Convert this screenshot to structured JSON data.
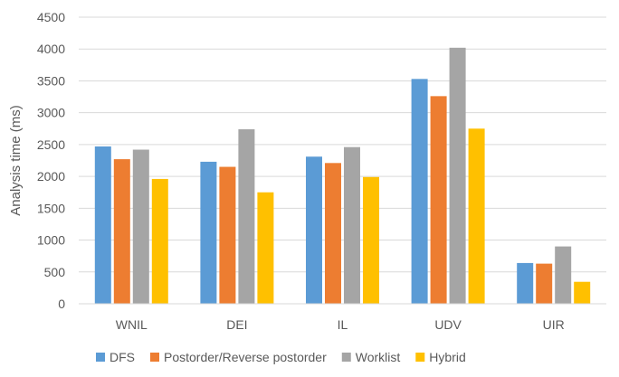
{
  "chart_data": {
    "type": "bar",
    "title": "",
    "xlabel": "",
    "ylabel": "Analysis time (ms)",
    "ylim": [
      0,
      4500
    ],
    "yticks": [
      0,
      500,
      1000,
      1500,
      2000,
      2500,
      3000,
      3500,
      4000,
      4500
    ],
    "grid": true,
    "legend_position": "bottom",
    "categories": [
      "WNIL",
      "DEI",
      "IL",
      "UDV",
      "UIR"
    ],
    "series": [
      {
        "name": "DFS",
        "color": "#5B9BD5",
        "values": [
          2470,
          2230,
          2310,
          3530,
          640
        ]
      },
      {
        "name": "Postorder/Reverse postorder",
        "color": "#ED7D31",
        "values": [
          2270,
          2150,
          2210,
          3260,
          630
        ]
      },
      {
        "name": "Worklist",
        "color": "#A5A5A5",
        "values": [
          2420,
          2740,
          2460,
          4020,
          900
        ]
      },
      {
        "name": "Hybrid",
        "color": "#FFC000",
        "values": [
          1960,
          1750,
          1990,
          2750,
          345
        ]
      }
    ]
  }
}
